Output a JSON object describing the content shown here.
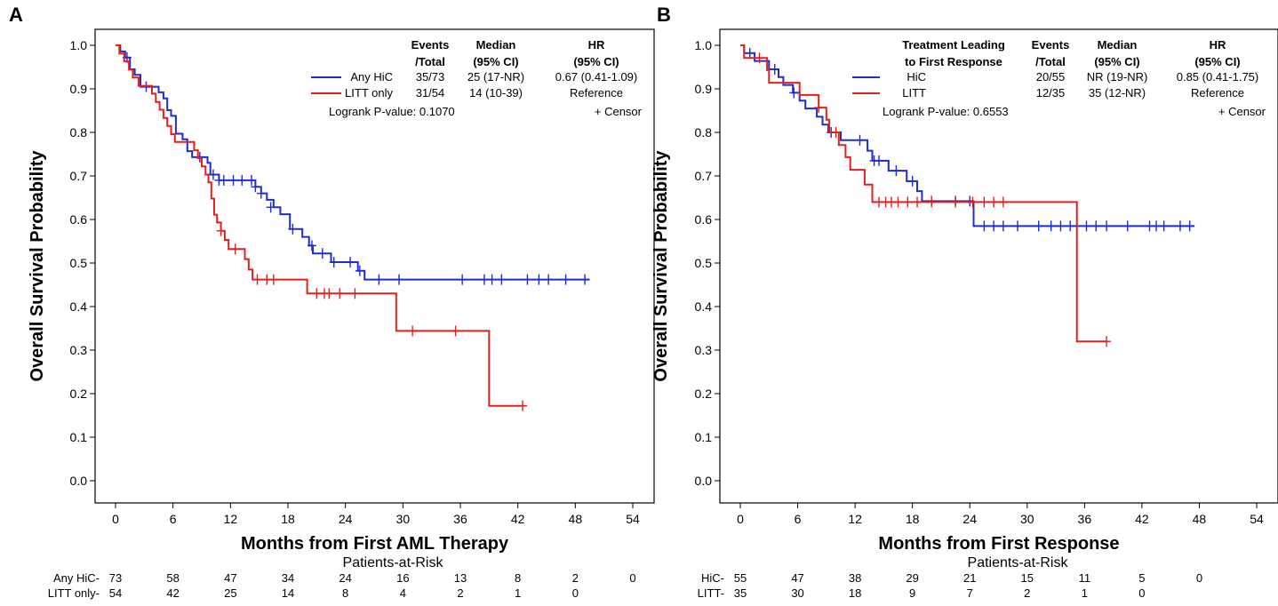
{
  "chart_data": [
    {
      "type": "line",
      "panel_label": "A",
      "title": "",
      "xlabel": "Months from First AML Therapy",
      "ylabel": "Overall Survival Probability",
      "xlim": [
        0,
        54
      ],
      "ylim": [
        0,
        1.0
      ],
      "xticks": [
        0,
        6,
        12,
        18,
        24,
        30,
        36,
        42,
        48,
        54
      ],
      "xtick_labels": [
        "0",
        "6",
        "12",
        "18",
        "24",
        "30",
        "36",
        "42",
        "48",
        "54"
      ],
      "yticks": [
        0,
        0.1,
        0.2,
        0.3,
        0.4,
        0.5,
        0.6,
        0.7,
        0.8,
        0.9,
        1.0
      ],
      "ytick_labels": [
        "0.0",
        "0.1",
        "0.2",
        "0.3",
        "0.4",
        "0.5",
        "0.6",
        "0.7",
        "0.8",
        "0.9",
        "1.0"
      ],
      "legend": {
        "headers": [
          "Events",
          "/Total",
          "Median",
          "(95% CI)",
          "HR",
          "(95% CI)"
        ],
        "rows": [
          {
            "label": "Any HiC",
            "events": "35/73",
            "median": "25 (17-NR)",
            "hr": "0.67 (0.41-1.09)"
          },
          {
            "label": "LITT only",
            "events": "31/54",
            "median": "14 (10-39)",
            "hr": "Reference"
          }
        ],
        "pvalue_text": "Logrank P-value: 0.1070",
        "censor_text": "+ Censor"
      },
      "series": [
        {
          "name": "Any HiC",
          "color": "#1f2ccf",
          "steps": [
            [
              0,
              1.0
            ],
            [
              0.5,
              0.986
            ],
            [
              1.0,
              0.972
            ],
            [
              1.5,
              0.945
            ],
            [
              2.0,
              0.932
            ],
            [
              2.6,
              0.905
            ],
            [
              4.0,
              0.905
            ],
            [
              4.5,
              0.892
            ],
            [
              5.0,
              0.878
            ],
            [
              5.4,
              0.851
            ],
            [
              5.8,
              0.838
            ],
            [
              6.3,
              0.797
            ],
            [
              7.0,
              0.784
            ],
            [
              7.5,
              0.757
            ],
            [
              8.0,
              0.743
            ],
            [
              9.0,
              0.743
            ],
            [
              9.6,
              0.73
            ],
            [
              9.9,
              0.703
            ],
            [
              10.3,
              0.703
            ],
            [
              10.8,
              0.69
            ],
            [
              13.8,
              0.69
            ],
            [
              14.6,
              0.675
            ],
            [
              15.2,
              0.66
            ],
            [
              15.8,
              0.645
            ],
            [
              16.5,
              0.628
            ],
            [
              17.2,
              0.612
            ],
            [
              18.2,
              0.578
            ],
            [
              19.0,
              0.578
            ],
            [
              19.5,
              0.56
            ],
            [
              20.2,
              0.54
            ],
            [
              20.6,
              0.522
            ],
            [
              22.0,
              0.522
            ],
            [
              22.5,
              0.502
            ],
            [
              24.8,
              0.502
            ],
            [
              25.3,
              0.482
            ],
            [
              26.0,
              0.462
            ],
            [
              49.5,
              0.462
            ]
          ],
          "censor": [
            [
              1.2,
              0.972
            ],
            [
              3.2,
              0.905
            ],
            [
              8.8,
              0.743
            ],
            [
              10.2,
              0.703
            ],
            [
              10.8,
              0.69
            ],
            [
              11.3,
              0.69
            ],
            [
              12.3,
              0.69
            ],
            [
              13.2,
              0.69
            ],
            [
              14.2,
              0.69
            ],
            [
              14.6,
              0.675
            ],
            [
              15.2,
              0.66
            ],
            [
              16.2,
              0.628
            ],
            [
              18.5,
              0.578
            ],
            [
              20.5,
              0.54
            ],
            [
              21.6,
              0.522
            ],
            [
              22.8,
              0.502
            ],
            [
              24.5,
              0.502
            ],
            [
              25.5,
              0.482
            ],
            [
              27.5,
              0.462
            ],
            [
              29.6,
              0.462
            ],
            [
              36.2,
              0.462
            ],
            [
              38.5,
              0.462
            ],
            [
              39.3,
              0.462
            ],
            [
              40.3,
              0.462
            ],
            [
              43.0,
              0.462
            ],
            [
              44.2,
              0.462
            ],
            [
              45.2,
              0.462
            ],
            [
              47.0,
              0.462
            ],
            [
              49.0,
              0.462
            ]
          ]
        },
        {
          "name": "LITT only",
          "color": "#e3201c",
          "steps": [
            [
              0,
              1.0
            ],
            [
              0.4,
              0.981
            ],
            [
              0.9,
              0.963
            ],
            [
              1.4,
              0.944
            ],
            [
              1.8,
              0.926
            ],
            [
              2.4,
              0.907
            ],
            [
              3.4,
              0.907
            ],
            [
              3.8,
              0.889
            ],
            [
              4.2,
              0.87
            ],
            [
              4.6,
              0.852
            ],
            [
              5.0,
              0.833
            ],
            [
              5.4,
              0.815
            ],
            [
              5.8,
              0.796
            ],
            [
              6.2,
              0.778
            ],
            [
              7.8,
              0.778
            ],
            [
              8.2,
              0.759
            ],
            [
              8.6,
              0.741
            ],
            [
              9.0,
              0.722
            ],
            [
              9.4,
              0.703
            ],
            [
              9.7,
              0.685
            ],
            [
              10.0,
              0.648
            ],
            [
              10.3,
              0.611
            ],
            [
              10.6,
              0.593
            ],
            [
              11.0,
              0.574
            ],
            [
              11.4,
              0.553
            ],
            [
              11.8,
              0.532
            ],
            [
              13.1,
              0.532
            ],
            [
              13.5,
              0.509
            ],
            [
              13.9,
              0.485
            ],
            [
              14.3,
              0.462
            ],
            [
              19.5,
              0.462
            ],
            [
              20.0,
              0.43
            ],
            [
              29.0,
              0.43
            ],
            [
              29.3,
              0.344
            ],
            [
              38.7,
              0.344
            ],
            [
              39.0,
              0.172
            ],
            [
              42.5,
              0.172
            ]
          ],
          "censor": [
            [
              11.0,
              0.574
            ],
            [
              12.5,
              0.532
            ],
            [
              14.8,
              0.462
            ],
            [
              15.8,
              0.462
            ],
            [
              16.5,
              0.462
            ],
            [
              21.0,
              0.43
            ],
            [
              21.8,
              0.43
            ],
            [
              22.3,
              0.43
            ],
            [
              23.4,
              0.43
            ],
            [
              25.0,
              0.43
            ],
            [
              31.0,
              0.344
            ],
            [
              35.5,
              0.344
            ],
            [
              42.5,
              0.172
            ]
          ]
        }
      ],
      "at_risk": {
        "title": "Patients-at-Risk",
        "rows": [
          {
            "label": "Any HiC-",
            "color": "#000000",
            "values": [
              "73",
              "58",
              "47",
              "34",
              "24",
              "16",
              "13",
              "8",
              "2",
              "0"
            ]
          },
          {
            "label": "LITT only-",
            "color": "#000000",
            "values": [
              "54",
              "42",
              "25",
              "14",
              "8",
              "4",
              "2",
              "1",
              "0",
              ""
            ]
          }
        ]
      }
    },
    {
      "type": "line",
      "panel_label": "B",
      "title": "",
      "xlabel": "Months from First Response",
      "ylabel": "Overall Survival Probability",
      "xlim": [
        0,
        54
      ],
      "ylim": [
        0,
        1.0
      ],
      "xticks": [
        0,
        6,
        12,
        18,
        24,
        30,
        36,
        42,
        48,
        54
      ],
      "xtick_labels": [
        "0",
        "6",
        "12",
        "18",
        "24",
        "30",
        "36",
        "42",
        "48",
        "54"
      ],
      "yticks": [
        0,
        0.1,
        0.2,
        0.3,
        0.4,
        0.5,
        0.6,
        0.7,
        0.8,
        0.9,
        1.0
      ],
      "ytick_labels": [
        "0.0",
        "0.1",
        "0.2",
        "0.3",
        "0.4",
        "0.5",
        "0.6",
        "0.7",
        "0.8",
        "0.9",
        "1.0"
      ],
      "legend": {
        "headers": [
          "Treatment Leading",
          "to First Response",
          "Events",
          "/Total",
          "Median",
          "(95% CI)",
          "HR",
          "(95% CI)"
        ],
        "rows": [
          {
            "label": "HiC",
            "events": "20/55",
            "median": "NR (19-NR)",
            "hr": "0.85 (0.41-1.75)"
          },
          {
            "label": "LITT",
            "events": "12/35",
            "median": "35 (12-NR)",
            "hr": "Reference"
          }
        ],
        "pvalue_text": "Logrank P-value: 0.6553",
        "censor_text": "+ Censor"
      },
      "series": [
        {
          "name": "HiC",
          "color": "#1f2ccf",
          "steps": [
            [
              0,
              1.0
            ],
            [
              0.4,
              0.982
            ],
            [
              1.5,
              0.964
            ],
            [
              3.0,
              0.945
            ],
            [
              4.0,
              0.927
            ],
            [
              4.5,
              0.909
            ],
            [
              5.5,
              0.891
            ],
            [
              6.2,
              0.873
            ],
            [
              6.8,
              0.855
            ],
            [
              8.0,
              0.836
            ],
            [
              8.6,
              0.818
            ],
            [
              9.2,
              0.8
            ],
            [
              10.0,
              0.8
            ],
            [
              10.5,
              0.782
            ],
            [
              13.0,
              0.782
            ],
            [
              13.3,
              0.758
            ],
            [
              13.8,
              0.735
            ],
            [
              15.0,
              0.735
            ],
            [
              15.5,
              0.712
            ],
            [
              17.0,
              0.712
            ],
            [
              17.4,
              0.688
            ],
            [
              18.5,
              0.665
            ],
            [
              19.0,
              0.642
            ],
            [
              24.0,
              0.642
            ],
            [
              24.4,
              0.585
            ],
            [
              47.5,
              0.585
            ]
          ],
          "censor": [
            [
              1.0,
              0.982
            ],
            [
              3.6,
              0.945
            ],
            [
              5.6,
              0.891
            ],
            [
              9.5,
              0.8
            ],
            [
              12.5,
              0.782
            ],
            [
              14.0,
              0.735
            ],
            [
              14.5,
              0.735
            ],
            [
              16.3,
              0.712
            ],
            [
              18.0,
              0.688
            ],
            [
              20.0,
              0.642
            ],
            [
              22.5,
              0.642
            ],
            [
              24.0,
              0.642
            ],
            [
              25.5,
              0.585
            ],
            [
              26.5,
              0.585
            ],
            [
              27.5,
              0.585
            ],
            [
              29.0,
              0.585
            ],
            [
              31.2,
              0.585
            ],
            [
              32.5,
              0.585
            ],
            [
              33.5,
              0.585
            ],
            [
              34.5,
              0.585
            ],
            [
              36.2,
              0.585
            ],
            [
              37.2,
              0.585
            ],
            [
              38.3,
              0.585
            ],
            [
              40.5,
              0.585
            ],
            [
              42.8,
              0.585
            ],
            [
              43.5,
              0.585
            ],
            [
              44.3,
              0.585
            ],
            [
              46.0,
              0.585
            ],
            [
              47.0,
              0.585
            ]
          ]
        },
        {
          "name": "LITT",
          "color": "#e3201c",
          "steps": [
            [
              0,
              1.0
            ],
            [
              0.4,
              0.971
            ],
            [
              2.8,
              0.943
            ],
            [
              3.0,
              0.914
            ],
            [
              5.8,
              0.914
            ],
            [
              6.2,
              0.886
            ],
            [
              7.8,
              0.886
            ],
            [
              8.2,
              0.857
            ],
            [
              9.0,
              0.829
            ],
            [
              9.3,
              0.8
            ],
            [
              9.8,
              0.8
            ],
            [
              10.3,
              0.771
            ],
            [
              11.0,
              0.743
            ],
            [
              11.5,
              0.714
            ],
            [
              12.5,
              0.714
            ],
            [
              13.0,
              0.68
            ],
            [
              13.8,
              0.64
            ],
            [
              35.0,
              0.64
            ],
            [
              35.2,
              0.32
            ],
            [
              38.3,
              0.32
            ]
          ],
          "censor": [
            [
              2.0,
              0.971
            ],
            [
              8.2,
              0.857
            ],
            [
              10.0,
              0.8
            ],
            [
              14.5,
              0.64
            ],
            [
              15.2,
              0.64
            ],
            [
              15.8,
              0.64
            ],
            [
              16.5,
              0.64
            ],
            [
              17.5,
              0.64
            ],
            [
              18.5,
              0.64
            ],
            [
              20.0,
              0.64
            ],
            [
              22.5,
              0.64
            ],
            [
              24.3,
              0.64
            ],
            [
              25.5,
              0.64
            ],
            [
              26.5,
              0.64
            ],
            [
              27.5,
              0.64
            ],
            [
              38.3,
              0.32
            ]
          ]
        }
      ],
      "at_risk": {
        "title": "Patients-at-Risk",
        "rows": [
          {
            "label": "HiC-",
            "color": "#000000",
            "values": [
              "55",
              "47",
              "38",
              "29",
              "21",
              "15",
              "11",
              "5",
              "0",
              ""
            ]
          },
          {
            "label": "LITT-",
            "color": "#000000",
            "values": [
              "35",
              "30",
              "18",
              "9",
              "7",
              "2",
              "1",
              "0",
              "",
              ""
            ]
          }
        ]
      }
    }
  ]
}
